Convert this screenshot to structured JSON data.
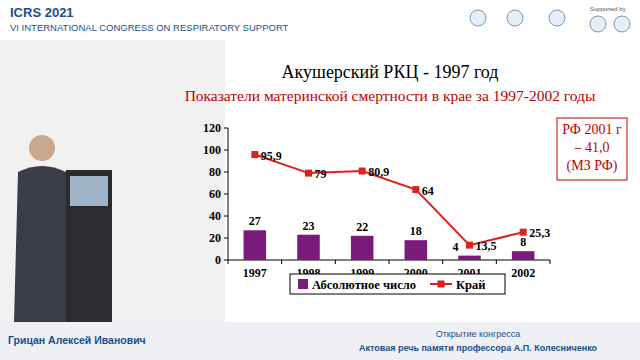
{
  "header": {
    "title": "ICRS 2021",
    "subtitle": "VI INTERNATIONAL CONGRESS ON RESPIRATORY SUPPORT",
    "sponsor": "Supported by"
  },
  "chart_data": {
    "type": "bar",
    "title": "Акушерский РКЦ - 1997 год",
    "subtitle": "Показатели материнской смертности в крае за 1997-2002 годы",
    "categories": [
      "1997",
      "1998",
      "1999",
      "2000",
      "2001",
      "2002"
    ],
    "series": [
      {
        "name": "Абсолютное число",
        "type": "bar",
        "color": "#7a1a7a",
        "values": [
          27,
          23,
          22,
          18,
          4,
          8
        ]
      },
      {
        "name": "Край",
        "type": "line",
        "color": "#e0201b",
        "marker": "square",
        "values": [
          95.9,
          79,
          80.9,
          64,
          13.5,
          25.3
        ],
        "value_labels": [
          "95,9",
          "79",
          "80,9",
          "64",
          "13,5",
          "25,3"
        ]
      }
    ],
    "ylim": [
      0,
      120
    ],
    "yticks": [
      0,
      20,
      40,
      60,
      80,
      100,
      120
    ],
    "grid": false,
    "legend": "bottom",
    "data_labels": true,
    "annotations": [
      "РФ 2001 г",
      "– 41,0",
      "(МЗ РФ)"
    ]
  },
  "footer": {
    "speaker": "Грицан Алексей Иванович",
    "event": "Открытие конгресса",
    "talk": "Актовая речь памяти профессора А.П. Колесниченко"
  }
}
